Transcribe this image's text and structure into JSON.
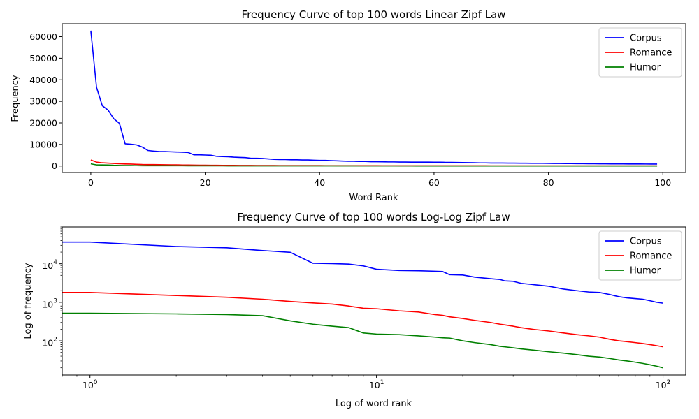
{
  "chart_data": [
    {
      "type": "line",
      "title": "Frequency Curve of top 100 words Linear Zipf Law",
      "xlabel": "Word Rank",
      "ylabel": "Frequency",
      "xlim": [
        -5,
        104
      ],
      "ylim": [
        -3000,
        66000
      ],
      "xticks": [
        0,
        20,
        40,
        60,
        80,
        100
      ],
      "yticks": [
        0,
        10000,
        20000,
        30000,
        40000,
        50000,
        60000
      ],
      "xtick_labels": [
        "0",
        "20",
        "40",
        "60",
        "80",
        "100"
      ],
      "ytick_labels": [
        "0",
        "10000",
        "20000",
        "30000",
        "40000",
        "50000",
        "60000"
      ],
      "legend_position": "top-right",
      "x": [
        0,
        1,
        2,
        3,
        4,
        5,
        6,
        7,
        8,
        9,
        10,
        11,
        12,
        13,
        14,
        15,
        16,
        17,
        18,
        19,
        20,
        21,
        22,
        23,
        24,
        25,
        26,
        27,
        28,
        29,
        30,
        31,
        32,
        33,
        34,
        35,
        36,
        37,
        38,
        39,
        40,
        41,
        42,
        43,
        44,
        45,
        46,
        47,
        48,
        49,
        50,
        51,
        52,
        53,
        54,
        55,
        56,
        57,
        58,
        59,
        60,
        61,
        62,
        63,
        64,
        65,
        66,
        67,
        68,
        69,
        70,
        71,
        72,
        73,
        74,
        75,
        76,
        77,
        78,
        79,
        80,
        81,
        82,
        83,
        84,
        85,
        86,
        87,
        88,
        89,
        90,
        91,
        92,
        93,
        94,
        95,
        96,
        97,
        98,
        99
      ],
      "series": [
        {
          "name": "Corpus",
          "color": "#0000ff",
          "values": [
            62800,
            36500,
            28000,
            26000,
            22000,
            19800,
            10300,
            10100,
            9800,
            8800,
            7200,
            6900,
            6700,
            6700,
            6600,
            6500,
            6400,
            6300,
            5200,
            5200,
            5100,
            5000,
            4500,
            4400,
            4300,
            4100,
            4000,
            3900,
            3600,
            3600,
            3500,
            3300,
            3100,
            3000,
            3000,
            2900,
            2900,
            2800,
            2800,
            2700,
            2600,
            2600,
            2500,
            2400,
            2300,
            2200,
            2200,
            2100,
            2100,
            2000,
            2000,
            1950,
            1900,
            1900,
            1850,
            1850,
            1800,
            1800,
            1800,
            1800,
            1750,
            1750,
            1700,
            1700,
            1650,
            1600,
            1550,
            1500,
            1450,
            1450,
            1400,
            1400,
            1380,
            1350,
            1350,
            1320,
            1300,
            1280,
            1250,
            1250,
            1220,
            1200,
            1180,
            1150,
            1150,
            1120,
            1100,
            1080,
            1050,
            1030,
            1010,
            990,
            980,
            970,
            960,
            950,
            940,
            930,
            920,
            900
          ]
        },
        {
          "name": "Romance",
          "color": "#ff0000",
          "values": [
            2800,
            1800,
            1500,
            1350,
            1200,
            1050,
            960,
            900,
            800,
            700,
            680,
            650,
            620,
            580,
            560,
            540,
            480,
            460,
            420,
            400,
            380,
            360,
            340,
            320,
            300,
            290,
            270,
            260,
            250,
            240,
            230,
            220,
            210,
            200,
            195,
            190,
            185,
            180,
            175,
            170,
            165,
            160,
            155,
            150,
            145,
            140,
            135,
            130,
            128,
            125,
            122,
            120,
            118,
            115,
            112,
            110,
            108,
            105,
            102,
            100,
            98,
            96,
            94,
            92,
            90,
            88,
            86,
            85,
            84,
            83,
            82,
            81,
            80,
            79,
            78,
            77,
            76,
            75,
            74,
            73,
            72,
            72,
            71,
            71,
            70,
            70,
            70,
            70,
            70,
            70,
            70,
            70,
            70,
            70,
            70,
            70,
            70,
            70,
            70,
            70
          ]
        },
        {
          "name": "Humor",
          "color": "#008000",
          "values": [
            1000,
            520,
            500,
            460,
            330,
            270,
            240,
            220,
            160,
            150,
            145,
            140,
            135,
            130,
            125,
            120,
            118,
            110,
            100,
            95,
            90,
            85,
            80,
            76,
            72,
            70,
            68,
            66,
            64,
            62,
            60,
            58,
            56,
            54,
            53,
            52,
            51,
            50,
            49,
            48,
            47,
            46,
            45,
            44,
            43,
            42,
            41,
            40,
            39,
            38,
            38,
            37,
            37,
            36,
            35,
            35,
            34,
            33,
            33,
            32,
            32,
            31,
            30,
            30,
            29,
            29,
            28,
            28,
            27,
            27,
            26,
            26,
            25,
            25,
            25,
            24,
            24,
            24,
            23,
            23,
            23,
            22,
            22,
            22,
            21,
            21,
            21,
            21,
            20,
            20,
            20,
            20,
            20,
            20,
            20,
            20,
            20,
            20,
            20,
            20
          ]
        }
      ]
    },
    {
      "type": "line",
      "scale": "log-log",
      "title": "Frequency Curve of top 100 words Log-Log Zipf Law",
      "xlabel": "Log of word rank",
      "ylabel": "Log of frequency",
      "xlim": [
        0.8,
        120
      ],
      "ylim": [
        13,
        90000
      ],
      "xticks": [
        1,
        10,
        100
      ],
      "yticks": [
        100,
        1000,
        10000
      ],
      "xtick_labels": [
        {
          "base": "10",
          "exp": "0"
        },
        {
          "base": "10",
          "exp": "1"
        },
        {
          "base": "10",
          "exp": "2"
        }
      ],
      "ytick_labels": [
        {
          "base": "10",
          "exp": "2"
        },
        {
          "base": "10",
          "exp": "3"
        },
        {
          "base": "10",
          "exp": "4"
        }
      ],
      "legend_position": "top-right",
      "x": [
        0.8,
        1,
        2,
        3,
        4,
        5,
        6,
        7,
        8,
        9,
        10,
        12,
        14,
        16,
        17,
        18,
        20,
        22,
        25,
        27,
        28,
        30,
        32,
        35,
        40,
        45,
        50,
        55,
        60,
        65,
        70,
        75,
        80,
        85,
        90,
        95,
        100
      ],
      "series": [
        {
          "name": "Corpus",
          "color": "#0000ff",
          "values": [
            36500,
            36500,
            28000,
            26000,
            22000,
            19800,
            10300,
            10100,
            9800,
            8800,
            7200,
            6700,
            6600,
            6400,
            6300,
            5200,
            5100,
            4500,
            4100,
            3900,
            3600,
            3500,
            3100,
            2900,
            2600,
            2200,
            2000,
            1850,
            1800,
            1600,
            1400,
            1300,
            1250,
            1200,
            1100,
            1000,
            950
          ]
        },
        {
          "name": "Romance",
          "color": "#ff0000",
          "values": [
            1800,
            1800,
            1500,
            1350,
            1200,
            1050,
            960,
            900,
            800,
            700,
            680,
            600,
            560,
            480,
            460,
            420,
            380,
            340,
            300,
            270,
            260,
            240,
            220,
            200,
            180,
            160,
            145,
            135,
            125,
            110,
            100,
            95,
            90,
            85,
            80,
            75,
            70
          ]
        },
        {
          "name": "Humor",
          "color": "#008000",
          "values": [
            520,
            520,
            500,
            480,
            450,
            330,
            270,
            240,
            220,
            160,
            150,
            145,
            135,
            125,
            120,
            118,
            100,
            90,
            80,
            72,
            70,
            66,
            62,
            58,
            52,
            48,
            44,
            40,
            38,
            35,
            32,
            30,
            28,
            26,
            24,
            22,
            20
          ]
        }
      ]
    }
  ]
}
